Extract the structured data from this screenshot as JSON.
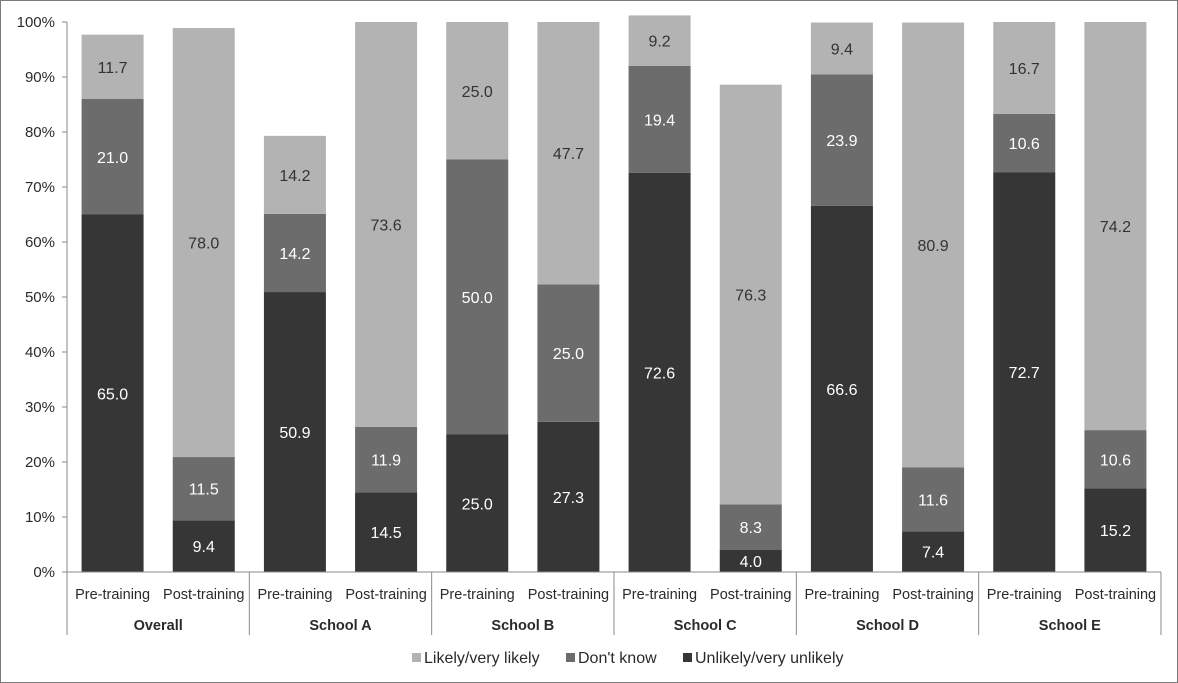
{
  "chart_data": {
    "type": "bar",
    "stacked": true,
    "groups": [
      {
        "name": "Overall",
        "bars": [
          "Pre-training",
          "Post-training"
        ]
      },
      {
        "name": "School A",
        "bars": [
          "Pre-training",
          "Post-training"
        ]
      },
      {
        "name": "School B",
        "bars": [
          "Pre-training",
          "Post-training"
        ]
      },
      {
        "name": "School C",
        "bars": [
          "Pre-training",
          "Post-training"
        ]
      },
      {
        "name": "School D",
        "bars": [
          "Pre-training",
          "Post-training"
        ]
      },
      {
        "name": "School E",
        "bars": [
          "Pre-training",
          "Post-training"
        ]
      }
    ],
    "series": [
      {
        "name": "Unlikely/very unlikely",
        "color": "#363636",
        "values": [
          65.0,
          9.4,
          50.9,
          14.5,
          25.0,
          27.3,
          72.6,
          4.0,
          66.6,
          7.4,
          72.7,
          15.2
        ],
        "labels": [
          "65.0",
          "9.4",
          "50.9",
          "14.5",
          "25.0",
          "27.3",
          "72.6",
          "4.0",
          "66.6",
          "7.4",
          "72.7",
          "15.2"
        ]
      },
      {
        "name": "Don't know",
        "color": "#6c6c6c",
        "values": [
          21.0,
          11.5,
          14.2,
          11.9,
          50.0,
          25.0,
          19.4,
          8.3,
          23.9,
          11.6,
          10.6,
          10.6
        ],
        "labels": [
          "21.0",
          "11.5",
          "14.2",
          "11.9",
          "50.0",
          "25.0",
          "19.4",
          "8.3",
          "23.9",
          "11.6",
          "10.6",
          "10.6"
        ]
      },
      {
        "name": "Likely/very likely",
        "color": "#b3b3b3",
        "values": [
          11.7,
          78.0,
          14.2,
          73.6,
          25.0,
          47.7,
          9.2,
          76.3,
          9.4,
          80.9,
          16.7,
          74.2
        ],
        "labels": [
          "11.7",
          "78.0",
          "14.2",
          "73.6",
          "25.0",
          "47.7",
          "9.2",
          "76.3",
          "9.4",
          "80.9",
          "16.7",
          "74.2"
        ]
      }
    ],
    "y_ticks": [
      "0%",
      "10%",
      "20%",
      "30%",
      "40%",
      "50%",
      "60%",
      "70%",
      "80%",
      "90%",
      "100%"
    ],
    "ylim": [
      0,
      100
    ],
    "legend": [
      "Likely/very likely",
      "Don't know",
      "Unlikely/very unlikely"
    ],
    "legend_position": "bottom"
  }
}
